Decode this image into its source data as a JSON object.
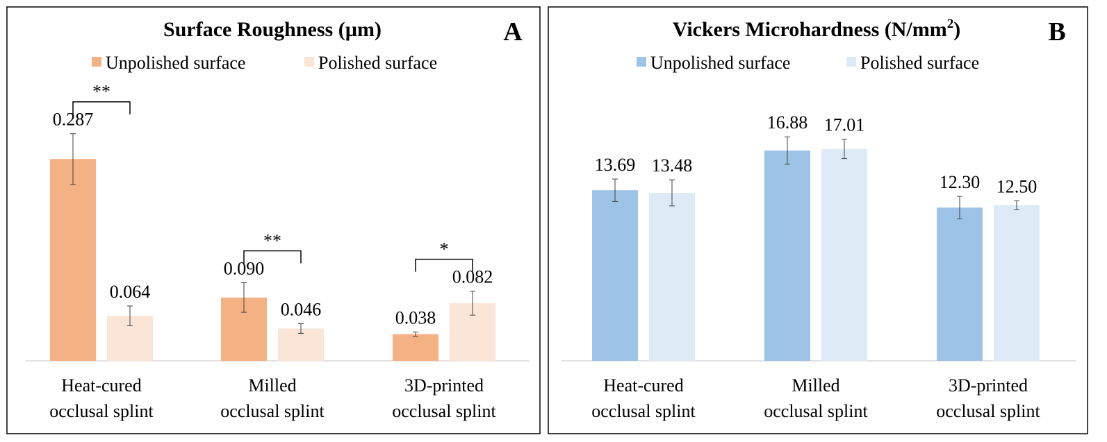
{
  "panels": [
    {
      "title": "Surface Roughness (µm)",
      "title_sup": "",
      "panel_letter": "A",
      "legend": [
        "Unpolished surface",
        "Polished surface"
      ],
      "colors": {
        "unpolished": "#f4b183",
        "polished": "#fbe5d6"
      }
    },
    {
      "title": "Vickers Microhardness (N/mm",
      "title_sup": "2",
      "title_end": ")",
      "panel_letter": "B",
      "legend": [
        "Unpolished surface",
        "Polished surface"
      ],
      "colors": {
        "unpolished": "#9dc3e6",
        "polished": "#deebf7"
      }
    }
  ],
  "chart_data": [
    {
      "type": "bar",
      "title": "Surface Roughness (µm)",
      "categories": [
        [
          "Heat-cured",
          "occlusal splint"
        ],
        [
          "Milled",
          "occlusal splint"
        ],
        [
          "3D-printed",
          "occlusal splint"
        ]
      ],
      "series": [
        {
          "name": "Unpolished surface",
          "values": [
            0.287,
            0.09,
            0.038
          ],
          "labels": [
            "0.287",
            "0.090",
            "0.038"
          ],
          "errors": [
            0.036,
            0.021,
            0.003
          ]
        },
        {
          "name": "Polished surface",
          "values": [
            0.064,
            0.046,
            0.082
          ],
          "labels": [
            "0.064",
            "0.046",
            "0.082"
          ],
          "errors": [
            0.014,
            0.007,
            0.017
          ]
        }
      ],
      "significance": [
        "**",
        "**",
        "*"
      ],
      "ylim": [
        0,
        0.3
      ],
      "grid": false,
      "legend_position": "top"
    },
    {
      "type": "bar",
      "title": "Vickers Microhardness (N/mm2)",
      "categories": [
        [
          "Heat-cured",
          "occlusal splint"
        ],
        [
          "Milled",
          "occlusal splint"
        ],
        [
          "3D-printed",
          "occlusal splint"
        ]
      ],
      "series": [
        {
          "name": "Unpolished surface",
          "values": [
            13.69,
            16.88,
            12.3
          ],
          "labels": [
            "13.69",
            "16.88",
            "12.30"
          ],
          "errors": [
            0.9,
            1.1,
            0.9
          ]
        },
        {
          "name": "Polished surface",
          "values": [
            13.48,
            17.01,
            12.5
          ],
          "labels": [
            "13.48",
            "17.01",
            "12.50"
          ],
          "errors": [
            1.05,
            0.78,
            0.35
          ]
        }
      ],
      "ylim": [
        0,
        22
      ],
      "grid": false,
      "legend_position": "top"
    }
  ]
}
